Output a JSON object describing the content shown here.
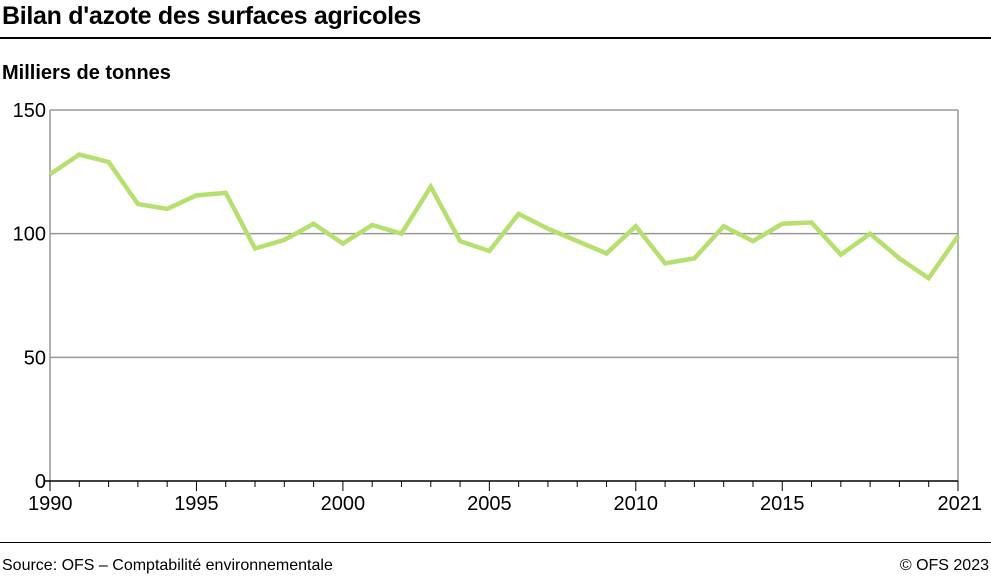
{
  "title": "Bilan d'azote des surfaces agricoles",
  "source": "Source: OFS – Comptabilité environnementale",
  "copyright": "© OFS 2023",
  "chart_data": {
    "type": "line",
    "title": "Bilan d'azote des surfaces agricoles",
    "ylabel": "Milliers de tonnes",
    "xlabel": "",
    "xlim": [
      1990,
      2021
    ],
    "ylim": [
      0,
      150
    ],
    "x_ticks": [
      1990,
      1995,
      2000,
      2005,
      2010,
      2015,
      2021
    ],
    "y_ticks": [
      0,
      50,
      100,
      150
    ],
    "grid": "horizontal",
    "line_color": "#b5e06e",
    "x": [
      1990,
      1991,
      1992,
      1993,
      1994,
      1995,
      1996,
      1997,
      1998,
      1999,
      2000,
      2001,
      2002,
      2003,
      2004,
      2005,
      2006,
      2007,
      2008,
      2009,
      2010,
      2011,
      2012,
      2013,
      2014,
      2015,
      2016,
      2017,
      2018,
      2019,
      2020,
      2021
    ],
    "series": [
      {
        "values": [
          124,
          132,
          129,
          112,
          110,
          115.5,
          116.5,
          94,
          97.5,
          104,
          96,
          103.5,
          100,
          119,
          97,
          93,
          108,
          102,
          97,
          92,
          103,
          88,
          90,
          103,
          97,
          104,
          104.5,
          91.5,
          100,
          90,
          82,
          99
        ]
      }
    ]
  }
}
